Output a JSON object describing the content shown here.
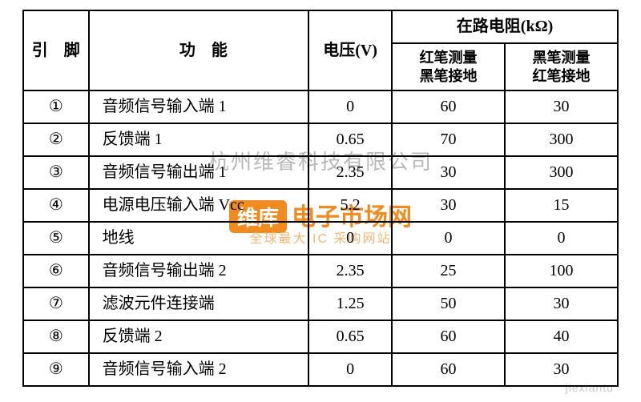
{
  "header": {
    "pin": "引　脚",
    "func": "功　能",
    "voltage": "电压(V)",
    "res_group": "在路电阻(kΩ)",
    "res_red": "红笔测量\n黑笔接地",
    "res_black": "黑笔测量\n红笔接地"
  },
  "rows": [
    {
      "pin": "①",
      "func": "音频信号输入端 1",
      "v": "0",
      "r1": "60",
      "r2": "30"
    },
    {
      "pin": "②",
      "func": "反馈端 1",
      "v": "0.65",
      "r1": "70",
      "r2": "300"
    },
    {
      "pin": "③",
      "func": "音频信号输出端 1",
      "v": "2.35",
      "r1": "30",
      "r2": "300"
    },
    {
      "pin": "④",
      "func": "电源电压输入端 Vcc",
      "v": "5.2",
      "r1": "30",
      "r2": "15"
    },
    {
      "pin": "⑤",
      "func": "地线",
      "v": "0",
      "r1": "0",
      "r2": "0"
    },
    {
      "pin": "⑥",
      "func": "音频信号输出端 2",
      "v": "2.35",
      "r1": "25",
      "r2": "100"
    },
    {
      "pin": "⑦",
      "func": "滤波元件连接端",
      "v": "1.25",
      "r1": "50",
      "r2": "30"
    },
    {
      "pin": "⑧",
      "func": "反馈端 2",
      "v": "0.65",
      "r1": "60",
      "r2": "40"
    },
    {
      "pin": "⑨",
      "func": "音频信号输入端 2",
      "v": "0",
      "r1": "60",
      "r2": "30"
    }
  ],
  "watermark": {
    "gray": "杭州维睿科技有限公司",
    "orange_logo": "维库",
    "orange_text": "电子市场网",
    "orange_sub": "全球最大 IC 采购网站",
    "corner": "jiexiantu"
  },
  "style": {
    "border_color": "#000000",
    "text_color": "#000000",
    "bg_color": "#ffffff",
    "wm_orange": "#f08b1f",
    "wm_gray": "#b9b9b9",
    "font_size_cell": 20,
    "font_size_sub": 18
  }
}
